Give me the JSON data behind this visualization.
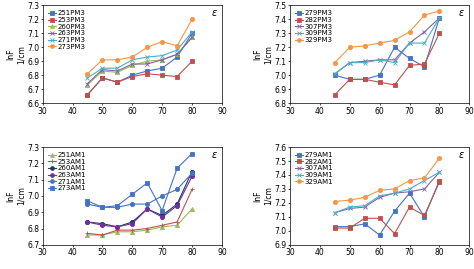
{
  "x": [
    45,
    50,
    55,
    60,
    65,
    70,
    75,
    80
  ],
  "pm3_top_left": {
    "ylabel": "lnF\n1/cm",
    "xlabel": "ε",
    "xlim": [
      30,
      90
    ],
    "ylim": [
      6.6,
      7.3
    ],
    "yticks": [
      6.6,
      6.7,
      6.8,
      6.9,
      7.0,
      7.1,
      7.2,
      7.3
    ],
    "xticks": [
      30,
      40,
      50,
      60,
      70,
      80,
      90
    ],
    "series": [
      {
        "label": "251PM3",
        "color": "#4472c4",
        "marker": "s",
        "data": [
          6.66,
          6.78,
          6.75,
          6.8,
          6.83,
          6.85,
          6.93,
          7.1
        ]
      },
      {
        "label": "253PM3",
        "color": "#c0504d",
        "marker": "s",
        "data": [
          6.66,
          6.78,
          6.75,
          6.79,
          6.81,
          6.8,
          6.79,
          6.9
        ]
      },
      {
        "label": "260PM3",
        "color": "#9bbb59",
        "marker": "^",
        "data": [
          6.73,
          6.83,
          6.82,
          6.87,
          6.9,
          6.91,
          6.95,
          7.07
        ]
      },
      {
        "label": "263PM3",
        "color": "#8064a2",
        "marker": "x",
        "data": [
          6.74,
          6.84,
          6.83,
          6.88,
          6.88,
          6.91,
          6.95,
          7.07
        ]
      },
      {
        "label": "271PM3",
        "color": "#4bacc6",
        "marker": "x",
        "data": [
          6.78,
          6.85,
          6.85,
          6.91,
          6.93,
          6.94,
          6.98,
          7.11
        ]
      },
      {
        "label": "273PM3",
        "color": "#f79646",
        "marker": "o",
        "data": [
          6.81,
          6.91,
          6.91,
          6.93,
          7.0,
          7.04,
          7.01,
          7.2
        ]
      }
    ]
  },
  "pm3_top_right": {
    "ylabel": "lnF\n1/cm",
    "xlabel": "ε",
    "xlim": [
      30,
      90
    ],
    "ylim": [
      6.8,
      7.5
    ],
    "yticks": [
      6.8,
      6.9,
      7.0,
      7.1,
      7.2,
      7.3,
      7.4,
      7.5
    ],
    "xticks": [
      30,
      40,
      50,
      60,
      70,
      80,
      90
    ],
    "series": [
      {
        "label": "279PM3",
        "color": "#4472c4",
        "marker": "s",
        "data": [
          7.0,
          6.97,
          6.97,
          7.0,
          7.2,
          7.12,
          7.06,
          7.41
        ]
      },
      {
        "label": "282PM3",
        "color": "#c0504d",
        "marker": "s",
        "data": [
          6.86,
          6.97,
          6.97,
          6.95,
          6.93,
          7.07,
          7.08,
          7.3
        ]
      },
      {
        "label": "307PM3",
        "color": "#8064a2",
        "marker": "x",
        "data": [
          7.01,
          7.09,
          7.1,
          7.11,
          7.11,
          7.23,
          7.31,
          7.41
        ]
      },
      {
        "label": "309PM3",
        "color": "#4bacc6",
        "marker": "x",
        "data": [
          7.01,
          7.09,
          7.09,
          7.11,
          7.09,
          7.23,
          7.23,
          7.41
        ]
      },
      {
        "label": "329PM3",
        "color": "#f79646",
        "marker": "o",
        "data": [
          7.09,
          7.2,
          7.21,
          7.23,
          7.25,
          7.31,
          7.43,
          7.46
        ]
      }
    ]
  },
  "am1_bottom_left": {
    "ylabel": "lnF\n1/cm",
    "xlabel": "ε",
    "xlim": [
      30,
      90
    ],
    "ylim": [
      6.7,
      7.3
    ],
    "yticks": [
      6.7,
      6.8,
      6.9,
      7.0,
      7.1,
      7.2,
      7.3
    ],
    "xticks": [
      30,
      40,
      50,
      60,
      70,
      80,
      90
    ],
    "series": [
      {
        "label": "251AM1",
        "color": "#9bbb59",
        "marker": "^",
        "data": [
          6.76,
          6.76,
          6.78,
          6.78,
          6.79,
          6.81,
          6.82,
          6.92
        ]
      },
      {
        "label": "253AM1",
        "color": "#c0504d",
        "marker": "+",
        "data": [
          6.77,
          6.76,
          6.79,
          6.79,
          6.8,
          6.82,
          6.84,
          7.04
        ]
      },
      {
        "label": "260AM1",
        "color": "#1f3864",
        "marker": "o",
        "data": [
          6.84,
          6.83,
          6.81,
          6.84,
          6.92,
          6.88,
          6.95,
          7.15
        ]
      },
      {
        "label": "263AM1",
        "color": "#7030a0",
        "marker": "o",
        "data": [
          6.84,
          6.82,
          6.81,
          6.83,
          6.92,
          6.87,
          6.94,
          7.12
        ]
      },
      {
        "label": "271AM1",
        "color": "#4472c4",
        "marker": "o",
        "data": [
          6.95,
          6.93,
          6.93,
          6.95,
          6.95,
          7.0,
          7.04,
          7.14
        ]
      },
      {
        "label": "273AM1",
        "color": "#4472c4",
        "marker": "s",
        "data": [
          6.97,
          6.93,
          6.94,
          7.01,
          7.08,
          6.91,
          7.17,
          7.26
        ]
      }
    ]
  },
  "am1_bottom_right": {
    "ylabel": "lnF\n1/cm",
    "xlabel": "ε",
    "xlim": [
      30,
      90
    ],
    "ylim": [
      6.9,
      7.6
    ],
    "yticks": [
      6.9,
      7.0,
      7.1,
      7.2,
      7.3,
      7.4,
      7.5,
      7.6
    ],
    "xticks": [
      30,
      40,
      50,
      60,
      70,
      80,
      90
    ],
    "series": [
      {
        "label": "279AM1",
        "color": "#4472c4",
        "marker": "s",
        "data": [
          7.03,
          7.03,
          7.05,
          6.97,
          7.14,
          7.27,
          7.1,
          7.36
        ]
      },
      {
        "label": "282AM1",
        "color": "#c0504d",
        "marker": "s",
        "data": [
          7.02,
          7.02,
          7.09,
          7.09,
          6.98,
          7.17,
          7.11,
          7.35
        ]
      },
      {
        "label": "307AM1",
        "color": "#8064a2",
        "marker": "x",
        "data": [
          7.13,
          7.16,
          7.17,
          7.24,
          7.27,
          7.28,
          7.3,
          7.42
        ]
      },
      {
        "label": "309AM1",
        "color": "#4bacc6",
        "marker": "x",
        "data": [
          7.13,
          7.17,
          7.18,
          7.25,
          7.27,
          7.3,
          7.36,
          7.42
        ]
      },
      {
        "label": "329AM1",
        "color": "#f79646",
        "marker": "o",
        "data": [
          7.21,
          7.22,
          7.24,
          7.29,
          7.3,
          7.36,
          7.38,
          7.52
        ]
      }
    ]
  },
  "marker_size": 3,
  "line_width": 0.8,
  "font_size": 6,
  "legend_font_size": 5,
  "tick_font_size": 5.5,
  "label_font_size": 5.5
}
